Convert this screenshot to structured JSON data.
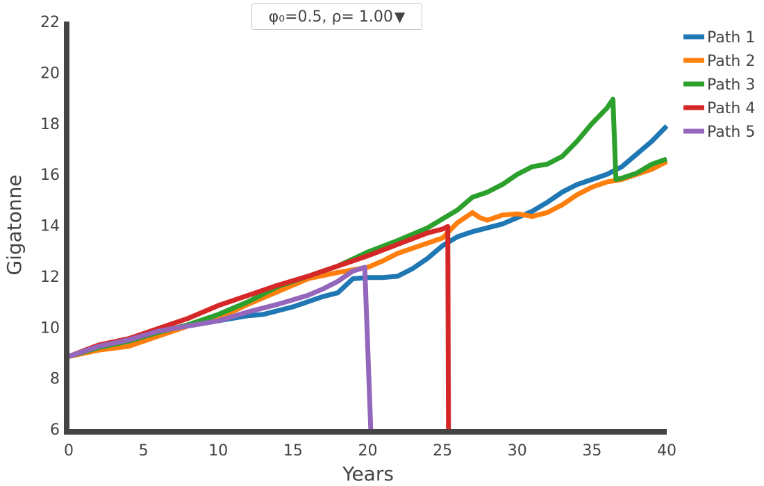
{
  "dropdown": {
    "selected": "φ₀=0.5, ρ= 1.00",
    "caret": "▼"
  },
  "chart_data": {
    "type": "line",
    "xlabel": "Years",
    "ylabel": "Gigatonne",
    "xlim": [
      0,
      40
    ],
    "ylim": [
      6,
      22
    ],
    "xticks": [
      0,
      5,
      10,
      15,
      20,
      25,
      30,
      35,
      40
    ],
    "yticks": [
      6,
      8,
      10,
      12,
      14,
      16,
      18,
      20,
      22
    ],
    "grid": false,
    "legend_position": "top-right",
    "series": [
      {
        "name": "Path 1",
        "color": "#1f77b4",
        "points": [
          [
            0,
            8.85
          ],
          [
            2,
            9.2
          ],
          [
            4,
            9.45
          ],
          [
            6,
            9.8
          ],
          [
            8,
            10.05
          ],
          [
            10,
            10.25
          ],
          [
            12,
            10.45
          ],
          [
            13,
            10.5
          ],
          [
            15,
            10.8
          ],
          [
            17,
            11.2
          ],
          [
            18,
            11.35
          ],
          [
            19,
            11.9
          ],
          [
            20,
            11.95
          ],
          [
            21,
            11.95
          ],
          [
            22,
            12.0
          ],
          [
            23,
            12.3
          ],
          [
            24,
            12.7
          ],
          [
            25,
            13.2
          ],
          [
            26,
            13.55
          ],
          [
            27,
            13.75
          ],
          [
            28,
            13.9
          ],
          [
            29,
            14.05
          ],
          [
            30,
            14.3
          ],
          [
            31,
            14.55
          ],
          [
            32,
            14.9
          ],
          [
            33,
            15.3
          ],
          [
            34,
            15.6
          ],
          [
            35,
            15.8
          ],
          [
            36,
            16.0
          ],
          [
            37,
            16.3
          ],
          [
            38,
            16.8
          ],
          [
            39,
            17.3
          ],
          [
            40,
            17.9
          ]
        ]
      },
      {
        "name": "Path 2",
        "color": "#ff7f0e",
        "points": [
          [
            0,
            8.85
          ],
          [
            2,
            9.1
          ],
          [
            4,
            9.25
          ],
          [
            6,
            9.65
          ],
          [
            8,
            10.05
          ],
          [
            10,
            10.35
          ],
          [
            12,
            10.9
          ],
          [
            14,
            11.4
          ],
          [
            16,
            11.9
          ],
          [
            18,
            12.15
          ],
          [
            20,
            12.35
          ],
          [
            21,
            12.6
          ],
          [
            22,
            12.9
          ],
          [
            24,
            13.3
          ],
          [
            25,
            13.5
          ],
          [
            26,
            14.1
          ],
          [
            27,
            14.5
          ],
          [
            27.5,
            14.3
          ],
          [
            28,
            14.2
          ],
          [
            29,
            14.4
          ],
          [
            30,
            14.45
          ],
          [
            31,
            14.35
          ],
          [
            32,
            14.5
          ],
          [
            33,
            14.8
          ],
          [
            34,
            15.2
          ],
          [
            35,
            15.5
          ],
          [
            36,
            15.7
          ],
          [
            37,
            15.8
          ],
          [
            38,
            16.0
          ],
          [
            39,
            16.2
          ],
          [
            40,
            16.5
          ]
        ]
      },
      {
        "name": "Path 3",
        "color": "#2ca02c",
        "points": [
          [
            0,
            8.85
          ],
          [
            2,
            9.2
          ],
          [
            4,
            9.45
          ],
          [
            6,
            9.8
          ],
          [
            8,
            10.1
          ],
          [
            10,
            10.5
          ],
          [
            12,
            11.0
          ],
          [
            14,
            11.6
          ],
          [
            16,
            12.0
          ],
          [
            18,
            12.4
          ],
          [
            20,
            12.95
          ],
          [
            22,
            13.4
          ],
          [
            24,
            13.9
          ],
          [
            26,
            14.6
          ],
          [
            27,
            15.1
          ],
          [
            28,
            15.3
          ],
          [
            29,
            15.6
          ],
          [
            30,
            16.0
          ],
          [
            31,
            16.3
          ],
          [
            32,
            16.4
          ],
          [
            33,
            16.7
          ],
          [
            34,
            17.3
          ],
          [
            35,
            18.0
          ],
          [
            36,
            18.6
          ],
          [
            36.4,
            18.95
          ],
          [
            36.6,
            15.8
          ],
          [
            37,
            15.85
          ],
          [
            38,
            16.05
          ],
          [
            39,
            16.4
          ],
          [
            40,
            16.6
          ]
        ]
      },
      {
        "name": "Path 4",
        "color": "#d62728",
        "points": [
          [
            0,
            8.85
          ],
          [
            2,
            9.3
          ],
          [
            4,
            9.55
          ],
          [
            6,
            9.95
          ],
          [
            8,
            10.35
          ],
          [
            10,
            10.85
          ],
          [
            12,
            11.25
          ],
          [
            14,
            11.65
          ],
          [
            16,
            12.0
          ],
          [
            18,
            12.4
          ],
          [
            20,
            12.8
          ],
          [
            22,
            13.25
          ],
          [
            24,
            13.7
          ],
          [
            25,
            13.85
          ],
          [
            25.35,
            13.95
          ],
          [
            25.4,
            6.0
          ]
        ]
      },
      {
        "name": "Path 5",
        "color": "#9467bd",
        "points": [
          [
            0,
            8.85
          ],
          [
            2,
            9.25
          ],
          [
            4,
            9.5
          ],
          [
            6,
            9.85
          ],
          [
            8,
            10.05
          ],
          [
            10,
            10.25
          ],
          [
            12,
            10.6
          ],
          [
            14,
            10.9
          ],
          [
            16,
            11.25
          ],
          [
            17,
            11.5
          ],
          [
            18,
            11.8
          ],
          [
            19,
            12.2
          ],
          [
            19.8,
            12.35
          ],
          [
            20.2,
            6.0
          ]
        ]
      }
    ]
  }
}
